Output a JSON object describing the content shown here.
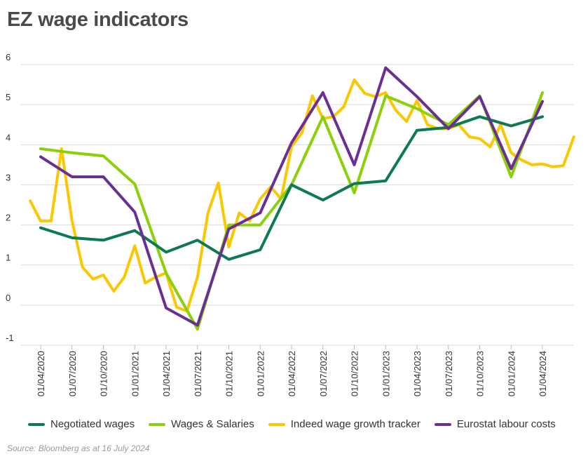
{
  "title": "EZ wage indicators",
  "source": "Source: Bloomberg as at 16 July 2024",
  "chart_data": {
    "type": "line",
    "title": "EZ wage indicators",
    "ylim": [
      -1,
      6
    ],
    "yticks": [
      "-1",
      "0",
      "1",
      "2",
      "3",
      "4",
      "5",
      "6"
    ],
    "grid": true,
    "legend_position": "bottom",
    "xlabels": [
      "01/04/2020",
      "01/07/2020",
      "01/10/2020",
      "01/01/2021",
      "01/04/2021",
      "01/07/2021",
      "01/10/2021",
      "01/01/2022",
      "01/04/2022",
      "01/07/2022",
      "01/10/2022",
      "01/01/2023",
      "01/04/2023",
      "01/07/2023",
      "01/10/2023",
      "01/01/2024",
      "01/04/2024"
    ],
    "series": [
      {
        "name": "Negotiated wages",
        "color": "#0e7a52",
        "x": [
          "01/04/2020",
          "01/07/2020",
          "01/10/2020",
          "01/01/2021",
          "01/04/2021",
          "01/07/2021",
          "01/10/2021",
          "01/01/2022",
          "01/04/2022",
          "01/07/2022",
          "01/10/2022",
          "01/01/2023",
          "01/04/2023",
          "01/07/2023",
          "01/10/2023",
          "01/01/2024",
          "01/04/2024"
        ],
        "y": [
          1.93,
          1.68,
          1.62,
          1.86,
          1.32,
          1.62,
          1.14,
          1.38,
          3.0,
          2.62,
          3.03,
          3.1,
          4.36,
          4.43,
          4.7,
          4.47,
          4.7
        ]
      },
      {
        "name": "Wages & Salaries",
        "color": "#8bd00a",
        "x": [
          "01/04/2020",
          "01/07/2020",
          "01/10/2020",
          "01/01/2021",
          "01/04/2021",
          "01/07/2021",
          "01/10/2021",
          "01/01/2022",
          "01/04/2022",
          "01/07/2022",
          "01/10/2022",
          "01/01/2023",
          "01/04/2023",
          "01/07/2023",
          "01/10/2023",
          "01/01/2024",
          "01/04/2024"
        ],
        "y": [
          3.9,
          3.8,
          3.72,
          3.02,
          0.8,
          -0.6,
          2.0,
          2.0,
          3.0,
          4.7,
          2.8,
          5.22,
          4.9,
          4.5,
          5.22,
          3.2,
          5.3
        ]
      },
      {
        "name": "Indeed wage growth tracker",
        "color": "#f9c800",
        "x": [
          "01/03/2020",
          "01/04/2020",
          "01/05/2020",
          "01/06/2020",
          "01/07/2020",
          "01/08/2020",
          "01/09/2020",
          "01/10/2020",
          "01/11/2020",
          "01/12/2020",
          "01/01/2021",
          "01/02/2021",
          "01/03/2021",
          "01/04/2021",
          "01/05/2021",
          "01/06/2021",
          "01/07/2021",
          "01/08/2021",
          "01/09/2021",
          "01/10/2021",
          "01/11/2021",
          "01/12/2021",
          "01/01/2022",
          "01/02/2022",
          "01/03/2022",
          "01/04/2022",
          "01/05/2022",
          "01/06/2022",
          "01/07/2022",
          "01/08/2022",
          "01/09/2022",
          "01/10/2022",
          "01/11/2022",
          "01/12/2022",
          "01/01/2023",
          "01/02/2023",
          "01/03/2023",
          "01/04/2023",
          "01/05/2023",
          "01/06/2023",
          "01/07/2023",
          "01/08/2023",
          "01/09/2023",
          "01/10/2023",
          "01/11/2023",
          "01/12/2023",
          "01/01/2024",
          "01/02/2024",
          "01/03/2024",
          "01/04/2024",
          "01/05/2024",
          "01/06/2024",
          "01/07/2024"
        ],
        "y": [
          2.6,
          2.1,
          2.1,
          3.9,
          2.1,
          0.95,
          0.65,
          0.75,
          0.35,
          0.7,
          1.48,
          0.55,
          0.7,
          0.8,
          -0.05,
          -0.15,
          0.7,
          2.3,
          3.05,
          1.45,
          2.3,
          2.1,
          2.65,
          2.95,
          2.65,
          3.95,
          4.3,
          5.22,
          4.65,
          4.7,
          4.95,
          5.62,
          5.28,
          5.2,
          5.3,
          4.85,
          4.58,
          5.1,
          4.5,
          4.4,
          4.4,
          4.5,
          4.2,
          4.15,
          3.95,
          4.5,
          3.8,
          3.62,
          3.5,
          3.52,
          3.45,
          3.48,
          4.2
        ]
      },
      {
        "name": "Eurostat labour costs",
        "color": "#6b2f93",
        "x": [
          "01/04/2020",
          "01/07/2020",
          "01/10/2020",
          "01/01/2021",
          "01/04/2021",
          "01/07/2021",
          "01/10/2021",
          "01/01/2022",
          "01/04/2022",
          "01/07/2022",
          "01/10/2022",
          "01/01/2023",
          "01/04/2023",
          "01/07/2023",
          "01/10/2023",
          "01/01/2024",
          "01/04/2024"
        ],
        "y": [
          3.7,
          3.2,
          3.2,
          2.32,
          -0.07,
          -0.5,
          1.9,
          2.3,
          4.05,
          5.3,
          3.5,
          5.92,
          5.2,
          4.4,
          5.2,
          3.4,
          5.08
        ]
      }
    ]
  }
}
